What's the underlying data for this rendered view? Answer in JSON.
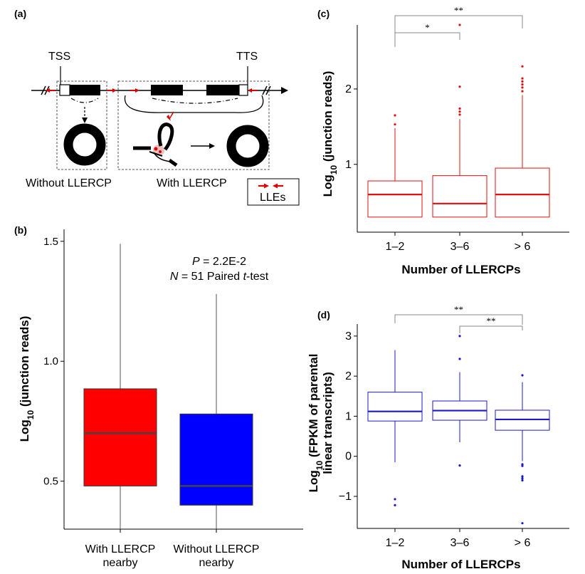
{
  "panel_a": {
    "label": "(a)",
    "tss": "TSS",
    "tts": "TTS",
    "without_label": "Without LLERCP",
    "with_label": "With LLERCP",
    "legend_label": "LLEs",
    "colors": {
      "arrow": "#e00000",
      "exon": "#000000"
    }
  },
  "chart_data": [
    {
      "panel": "(b)",
      "type": "box",
      "categories": [
        "With LLERCP\nnearby",
        "Without LLERCP\nnearby"
      ],
      "ylabel": "Log10 (junction reads)",
      "ylim": [
        0.3,
        1.55
      ],
      "yticks": [
        0.5,
        1.0,
        1.5
      ],
      "annotation": [
        "P = 2.2E-2",
        "N = 51 Paired t-test"
      ],
      "series": [
        {
          "category": "With LLERCP nearby",
          "whisker_low": 0.3,
          "q1": 0.48,
          "median": 0.7,
          "q3": 0.885,
          "whisker_high": 1.49,
          "fill": "#ff0000"
        },
        {
          "category": "Without LLERCP nearby",
          "whisker_low": 0.3,
          "q1": 0.4,
          "median": 0.48,
          "q3": 0.78,
          "whisker_high": 1.28,
          "fill": "#0000ff"
        }
      ]
    },
    {
      "panel": "(c)",
      "type": "box",
      "categories": [
        "1–2",
        "3–6",
        "> 6"
      ],
      "xlabel": "Number of LLERCPs",
      "ylabel": "Log10 (junction reads)",
      "ylim": [
        0.1,
        2.85
      ],
      "yticks": [
        1,
        2
      ],
      "color": "#e01010",
      "series": [
        {
          "category": "1–2",
          "whisker_low": 0.3,
          "q1": 0.3,
          "median": 0.6,
          "q3": 0.78,
          "whisker_high": 1.48,
          "outliers": [
            1.53,
            1.65
          ]
        },
        {
          "category": "3–6",
          "whisker_low": 0.3,
          "q1": 0.3,
          "median": 0.48,
          "q3": 0.85,
          "whisker_high": 1.6,
          "outliers": [
            1.66,
            1.7,
            1.74,
            2.03,
            2.85
          ]
        },
        {
          "category": "> 6",
          "whisker_low": 0.3,
          "q1": 0.3,
          "median": 0.6,
          "q3": 0.95,
          "whisker_high": 1.92,
          "outliers": [
            1.97,
            2.02,
            2.06,
            2.1,
            2.14,
            2.3
          ]
        }
      ],
      "brackets": [
        {
          "from": "1–2",
          "to": "3–6",
          "label": "*"
        },
        {
          "from": "1–2",
          "to": "> 6",
          "label": "**"
        }
      ]
    },
    {
      "panel": "(d)",
      "type": "box",
      "categories": [
        "1–2",
        "3–6",
        "> 6"
      ],
      "xlabel": "Number of LLERCPs",
      "ylabel": "Log10 (FPKM of parental linear transcripts)",
      "ylim": [
        -1.8,
        3.3
      ],
      "yticks": [
        -1,
        0,
        1,
        2,
        3
      ],
      "color": "#1a1acc",
      "series": [
        {
          "category": "1–2",
          "whisker_low": -0.15,
          "q1": 0.88,
          "median": 1.12,
          "q3": 1.6,
          "whisker_high": 2.65,
          "outliers": [
            -1.07,
            -1.22
          ]
        },
        {
          "category": "3–6",
          "whisker_low": 0.35,
          "q1": 0.9,
          "median": 1.14,
          "q3": 1.38,
          "whisker_high": 2.1,
          "outliers": [
            -0.23,
            2.43,
            3.0
          ]
        },
        {
          "category": "> 6",
          "whisker_low": -0.12,
          "q1": 0.65,
          "median": 0.92,
          "q3": 1.15,
          "whisker_high": 1.85,
          "outliers": [
            -0.2,
            -0.24,
            -0.5,
            -0.55,
            -0.6,
            -1.67,
            2.02
          ]
        }
      ],
      "brackets": [
        {
          "from": "1–2",
          "to": "> 6",
          "label": "**"
        },
        {
          "from": "3–6",
          "to": "> 6",
          "label": "**"
        }
      ]
    }
  ]
}
